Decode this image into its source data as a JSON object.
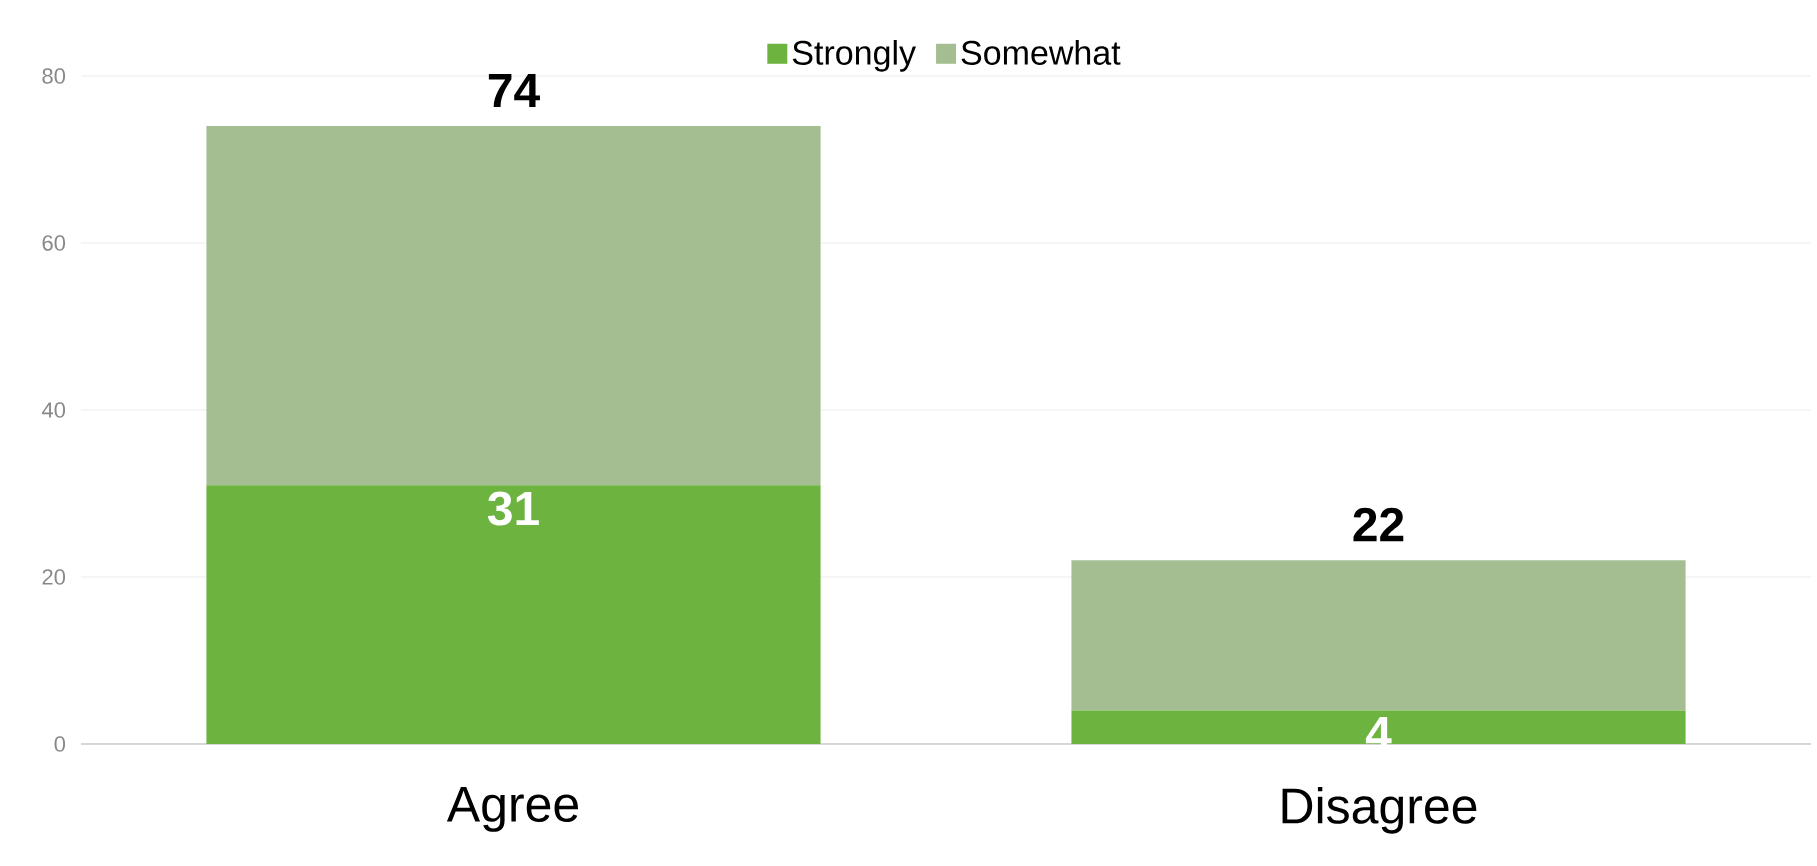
{
  "chart_data": {
    "type": "bar",
    "stacked": true,
    "categories": [
      "Agree",
      "Disagree"
    ],
    "series": [
      {
        "name": "Strongly",
        "color": "#6db33f",
        "values": [
          31,
          4
        ],
        "value_labels": [
          "31",
          "4"
        ]
      },
      {
        "name": "Somewhat",
        "color": "#a4be92",
        "values": [
          43,
          18
        ]
      }
    ],
    "totals": [
      "74",
      "22"
    ],
    "ylim": [
      0,
      80
    ],
    "yticks": [
      0,
      20,
      40,
      60,
      80
    ],
    "grid": "y",
    "legend": "top"
  }
}
